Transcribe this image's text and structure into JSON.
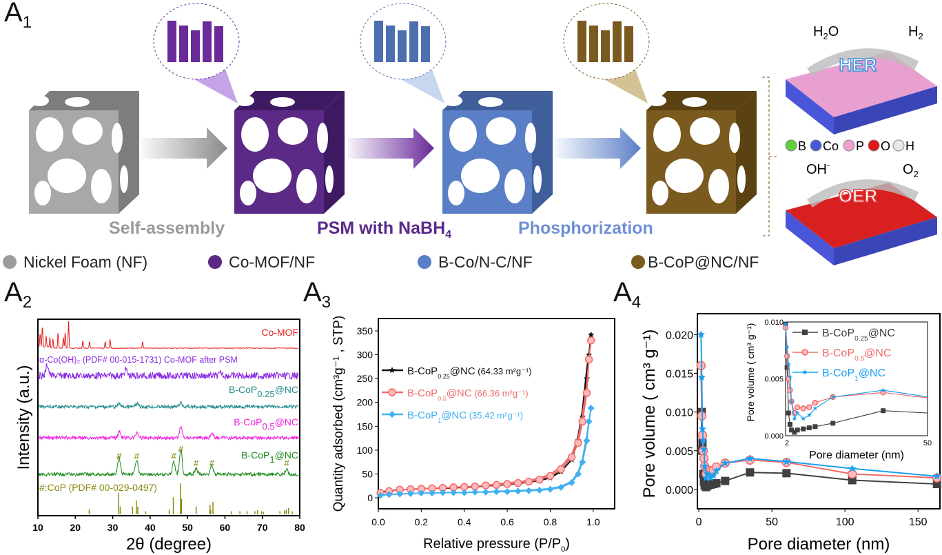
{
  "panels": {
    "a1": "A",
    "a1_sub": "1",
    "a2": "A",
    "a2_sub": "2",
    "a3": "A",
    "a3_sub": "3",
    "a4": "A",
    "a4_sub": "4"
  },
  "schematic": {
    "steps": [
      {
        "label": "Self-assembly",
        "color": "#9a9a9a"
      },
      {
        "label": "PSM with NaBH",
        "sub": "4",
        "color": "#5a2a8a"
      },
      {
        "label": "Phosphorization",
        "color": "#6f8fd2"
      }
    ],
    "materials": [
      {
        "label": "Nickel Foam (NF)",
        "color": "#9c9c9c"
      },
      {
        "label": "Co-MOF/NF",
        "color": "#5b2a86"
      },
      {
        "label": "B-Co/N-C/NF",
        "color": "#5b7fc6"
      },
      {
        "label": "B-CoP@NC/NF",
        "color": "#7a5a1e"
      }
    ],
    "her": {
      "label": "HER",
      "reactant": "H",
      "reactant_sub": "2",
      "reactant_tail": "O",
      "product": "H",
      "product_sub": "2"
    },
    "oer": {
      "label": "OER",
      "reactant": "OH",
      "reactant_sup": "-",
      "product": "O",
      "product_sub": "2"
    },
    "elements": [
      {
        "label": "B",
        "color": "#5ed13a"
      },
      {
        "label": "Co",
        "color": "#4a56d8"
      },
      {
        "label": "P",
        "color": "#f0a0d0"
      },
      {
        "label": "O",
        "color": "#e01818"
      },
      {
        "label": "H",
        "color": "#e8e8e8"
      }
    ]
  },
  "chart_data": [
    {
      "type": "line",
      "panel": "A2",
      "xlabel": "2θ (degree)",
      "ylabel": "Intensity (a.u.)",
      "xlim": [
        10,
        80
      ],
      "xticks": [
        10,
        20,
        30,
        40,
        50,
        60,
        70,
        80
      ],
      "yticks": [],
      "series": [
        {
          "name": "Co-MOF",
          "color": "#e81c1c",
          "peaks": [
            [
              10.6,
              0.5
            ],
            [
              11.2,
              0.8
            ],
            [
              12.2,
              0.4
            ],
            [
              13.2,
              0.4
            ],
            [
              14.0,
              0.35
            ],
            [
              15.4,
              0.6
            ],
            [
              16.8,
              0.4
            ],
            [
              17.3,
              0.6
            ],
            [
              18.2,
              1.0
            ],
            [
              22,
              0.3
            ],
            [
              23.8,
              0.25
            ],
            [
              28,
              0.25
            ],
            [
              29.3,
              0.35
            ],
            [
              38,
              0.25
            ]
          ]
        },
        {
          "name": "α-Co(OH)₂ (PDF# 00-015-1731) Co-MOF after PSM",
          "color": "#8a2be2",
          "peaks": [
            [
              12.5,
              0.6
            ],
            [
              33.5,
              0.35
            ],
            [
              59,
              0.15
            ]
          ]
        },
        {
          "name": "B-CoP0.25@NC",
          "color": "#1e8a8a",
          "peaks": [
            [
              31.8,
              0.2
            ],
            [
              36.5,
              0.2
            ],
            [
              48.2,
              0.25
            ]
          ]
        },
        {
          "name": "B-CoP0.5@NC",
          "color": "#f020e0",
          "peaks": [
            [
              31.8,
              0.35
            ],
            [
              36.5,
              0.3
            ],
            [
              48.2,
              0.6
            ],
            [
              56.5,
              0.25
            ]
          ]
        },
        {
          "name": "B-CoP1@NC",
          "color": "#1a8a1a",
          "peaks": [
            [
              31.7,
              0.8
            ],
            [
              36.4,
              0.7
            ],
            [
              46.3,
              0.6
            ],
            [
              48.2,
              1.2
            ],
            [
              52.3,
              0.25
            ],
            [
              56.5,
              0.45
            ],
            [
              76.5,
              0.2
            ]
          ]
        }
      ],
      "hash_marks": [
        31.7,
        36.4,
        46.3,
        48.2,
        52.3,
        56.5,
        76.5
      ],
      "reference": {
        "label": "#:CoP (PDF# 00-029-0497)",
        "color": "#8a8a10",
        "lines": [
          [
            23.7,
            0.15
          ],
          [
            31.6,
            0.7
          ],
          [
            32,
            0.25
          ],
          [
            35.3,
            0.25
          ],
          [
            36.3,
            0.45
          ],
          [
            36.7,
            0.25
          ],
          [
            38.8,
            0.1
          ],
          [
            45.1,
            0.15
          ],
          [
            46.2,
            0.55
          ],
          [
            48.1,
            1.0
          ],
          [
            48.4,
            0.5
          ],
          [
            52.3,
            0.25
          ],
          [
            56.0,
            0.3
          ],
          [
            56.2,
            0.15
          ],
          [
            56.8,
            0.4
          ],
          [
            61.7,
            0.1
          ],
          [
            64,
            0.1
          ],
          [
            65.9,
            0.1
          ],
          [
            68,
            0.1
          ],
          [
            68.7,
            0.13
          ],
          [
            69.8,
            0.1
          ],
          [
            70.3,
            0.08
          ],
          [
            74.7,
            0.1
          ],
          [
            75.9,
            0.12
          ],
          [
            76.4,
            0.15
          ],
          [
            77.0,
            0.2
          ],
          [
            78.0,
            0.1
          ]
        ]
      }
    },
    {
      "type": "line",
      "panel": "A3",
      "xlabel": "Relative pressure (P/P",
      "xlabel_sub": "0",
      "xlabel_tail": ")",
      "ylabel": "Quantity adsorbed (cm³g⁻¹ , STP)",
      "xlim": [
        0,
        1.1
      ],
      "ylim": [
        -23,
        376
      ],
      "xticks": [
        0,
        0.2,
        0.4,
        0.6,
        0.8,
        1.0
      ],
      "yticks": [
        0,
        50,
        100,
        150,
        200,
        250,
        300,
        350
      ],
      "legend": "top-left",
      "x": [
        0.01,
        0.05,
        0.1,
        0.15,
        0.2,
        0.25,
        0.3,
        0.35,
        0.4,
        0.45,
        0.5,
        0.55,
        0.6,
        0.65,
        0.7,
        0.75,
        0.8,
        0.85,
        0.9,
        0.93,
        0.95,
        0.97,
        0.98,
        0.99
      ],
      "series": [
        {
          "name": "B-CoP0.25@NC (64.33 m²g⁻¹)",
          "color": "#111111",
          "marker": "star",
          "y": [
            12,
            15,
            17,
            18,
            19,
            20,
            20,
            21,
            22,
            23,
            25,
            26,
            28,
            30,
            33,
            36,
            42,
            55,
            80,
            120,
            170,
            250,
            300,
            342
          ]
        },
        {
          "name": "B-CoP0.5@NC (66.36 m²g⁻¹)",
          "color": "#f06a6a",
          "marker": "circle",
          "y": [
            10,
            14,
            17,
            18,
            19,
            20,
            21,
            22,
            23,
            24,
            26,
            27,
            29,
            31,
            34,
            38,
            46,
            60,
            85,
            115,
            160,
            220,
            290,
            330
          ]
        },
        {
          "name": "B-CoP1@NC (35.42 m²g⁻¹)",
          "color": "#3fb0f0",
          "marker": "diamond",
          "y": [
            5,
            7,
            8,
            9,
            10,
            10,
            11,
            11,
            11,
            12,
            12,
            13,
            13,
            14,
            15,
            16,
            18,
            22,
            32,
            50,
            75,
            120,
            160,
            188
          ]
        }
      ]
    },
    {
      "type": "line",
      "panel": "A4",
      "xlabel": "Pore diameter (nm)",
      "ylabel": "Pore volume ( cm³ g⁻¹)",
      "xlim": [
        -1,
        165
      ],
      "ylim": [
        -0.0025,
        0.0227
      ],
      "xticks": [
        0,
        50,
        100,
        150
      ],
      "yticks": [
        "0.000",
        "0.005",
        "0.010",
        "0.015",
        "0.020"
      ],
      "x": [
        1.5,
        2,
        2.5,
        3,
        3.5,
        4,
        5,
        6,
        8,
        10,
        12,
        18,
        35,
        60,
        105,
        163
      ],
      "series": [
        {
          "name": "B-CoP0.25@NC",
          "color": "#404040",
          "marker": "square",
          "y": [
            0.005,
            0.01,
            0.006,
            0.002,
            0.001,
            0.0005,
            0.0003,
            0.0005,
            0.0006,
            0.0007,
            0.0008,
            0.0011,
            0.0022,
            0.0021,
            0.0012,
            0.0007
          ]
        },
        {
          "name": "B-CoP0.5@NC",
          "color": "#f06a6a",
          "marker": "circle",
          "y": [
            0.016,
            0.0095,
            0.007,
            0.005,
            0.004,
            0.003,
            0.002,
            0.0025,
            0.0024,
            0.0025,
            0.0029,
            0.0034,
            0.0038,
            0.0035,
            0.002,
            0.0015
          ]
        },
        {
          "name": "B-CoP1@NC",
          "color": "#1aa0f0",
          "marker": "star",
          "y": [
            0.02,
            0.0145,
            0.0078,
            0.0063,
            0.0052,
            0.003,
            0.0015,
            0.002,
            0.0015,
            0.0018,
            0.0024,
            0.0034,
            0.004,
            0.0036,
            0.0027,
            0.0017
          ]
        }
      ],
      "inset": {
        "xlabel": "Pore diameter (nm)",
        "ylabel": "Pore volume ( cm³ g⁻¹)",
        "xlim": [
          2,
          50
        ],
        "ylim": [
          0,
          0.01
        ],
        "xticks": [
          "2",
          "50"
        ],
        "yticks": [
          "0.000",
          "0.005",
          "0.010"
        ],
        "legend": "top-right"
      }
    }
  ]
}
